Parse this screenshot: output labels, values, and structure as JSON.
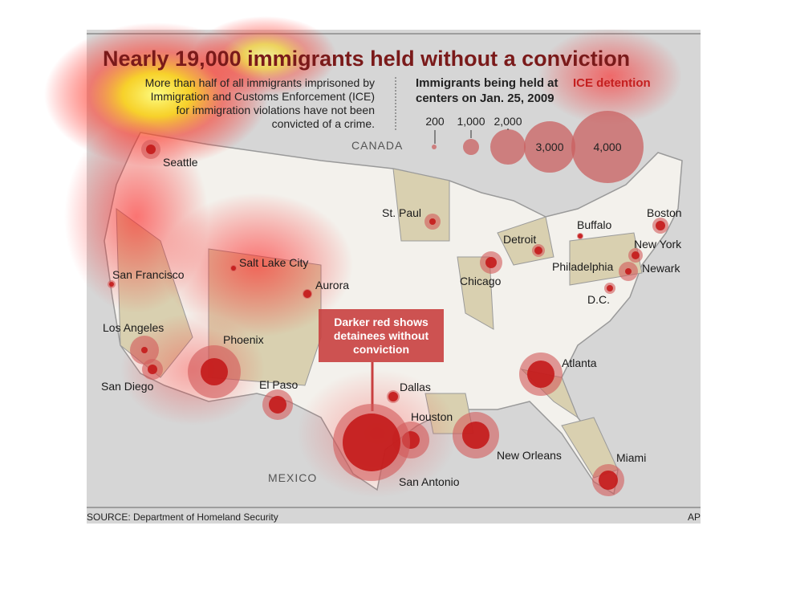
{
  "header": {
    "title": "Nearly 19,000 immigrants held without a conviction",
    "intro": [
      "More than half of all immigrants imprisoned by",
      "Immigration and Customs Enforcement (ICE)",
      "for immigration violations have not been",
      "convicted of a crime."
    ]
  },
  "legend": {
    "title": [
      "Immigrants being held at ",
      "ICE detention",
      "centers on Jan. 25, 2009"
    ],
    "sizes": [
      "200",
      "1,000",
      "2,000",
      "3,000",
      "4,000"
    ]
  },
  "regions": [
    "CANADA",
    "MEXICO"
  ],
  "cities": [
    "Seattle",
    "San Francisco",
    "Salt Lake City",
    "Aurora",
    "Los Angeles",
    "San Diego",
    "Phoenix",
    "El Paso",
    "Dallas",
    "Houston",
    "San Antonio",
    "St. Paul",
    "Chicago",
    "Detroit",
    "Buffalo",
    "Boston",
    "New York",
    "Newark",
    "Philadelphia",
    "D.C.",
    "Atlanta",
    "New Orleans",
    "Miami"
  ],
  "callout": [
    "Darker red shows",
    "detainees without",
    "conviction"
  ],
  "footer": {
    "source": "SOURCE: Department of Homeland Security",
    "credit": "AP"
  }
}
